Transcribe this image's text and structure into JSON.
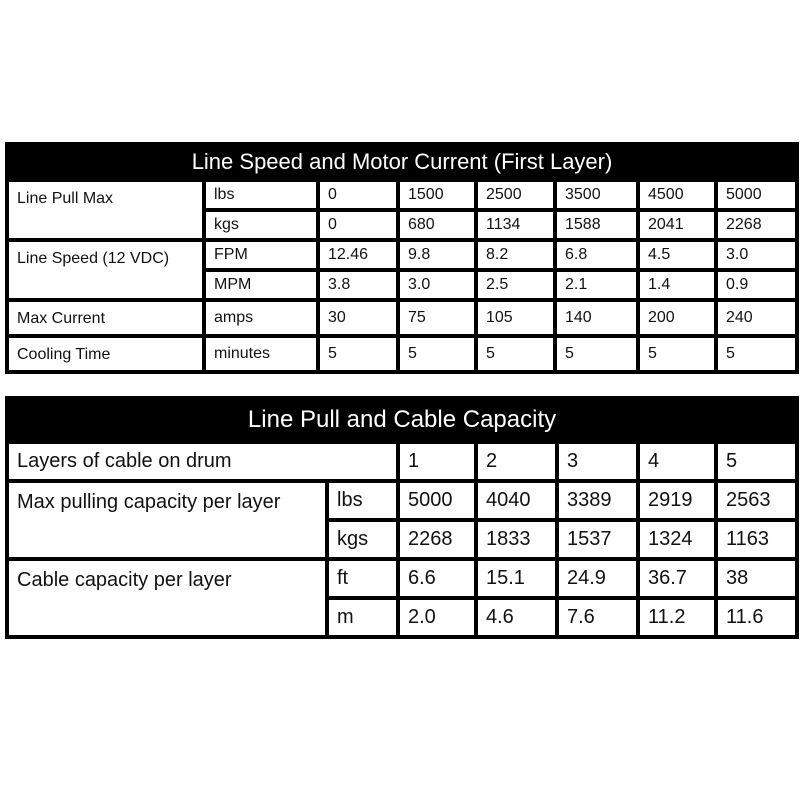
{
  "table1": {
    "title": "Line Speed and Motor Current (First Layer)",
    "rows": [
      {
        "label": "Line Pull Max",
        "unit": "lbs",
        "values": [
          "0",
          "1500",
          "2500",
          "3500",
          "4500",
          "5000"
        ]
      },
      {
        "unit": "kgs",
        "values": [
          "0",
          "680",
          "1134",
          "1588",
          "2041",
          "2268"
        ]
      },
      {
        "label": "Line Speed (12 VDC)",
        "unit": "FPM",
        "values": [
          "12.46",
          "9.8",
          "8.2",
          "6.8",
          "4.5",
          "3.0"
        ]
      },
      {
        "unit": "MPM",
        "values": [
          "3.8",
          "3.0",
          "2.5",
          "2.1",
          "1.4",
          "0.9"
        ]
      },
      {
        "label": "Max Current",
        "unit": "amps",
        "values": [
          "30",
          "75",
          "105",
          "140",
          "200",
          "240"
        ]
      },
      {
        "label": "Cooling Time",
        "unit": "minutes",
        "values": [
          "5",
          "5",
          "5",
          "5",
          "5",
          "5"
        ]
      }
    ]
  },
  "table2": {
    "title": "Line Pull and Cable Capacity",
    "layers_label": "Layers of cable on drum",
    "layers": [
      "1",
      "2",
      "3",
      "4",
      "5"
    ],
    "rows": [
      {
        "label": "Max pulling capacity per layer",
        "unit": "lbs",
        "values": [
          "5000",
          "4040",
          "3389",
          "2919",
          "2563"
        ]
      },
      {
        "unit": "kgs",
        "values": [
          "2268",
          "1833",
          "1537",
          "1324",
          "1163"
        ]
      },
      {
        "label": "Cable capacity per layer",
        "unit": "ft",
        "values": [
          "6.6",
          "15.1",
          "24.9",
          "36.7",
          "38"
        ]
      },
      {
        "unit": "m",
        "values": [
          "2.0",
          "4.6",
          "7.6",
          "11.2",
          "11.6"
        ]
      }
    ]
  }
}
